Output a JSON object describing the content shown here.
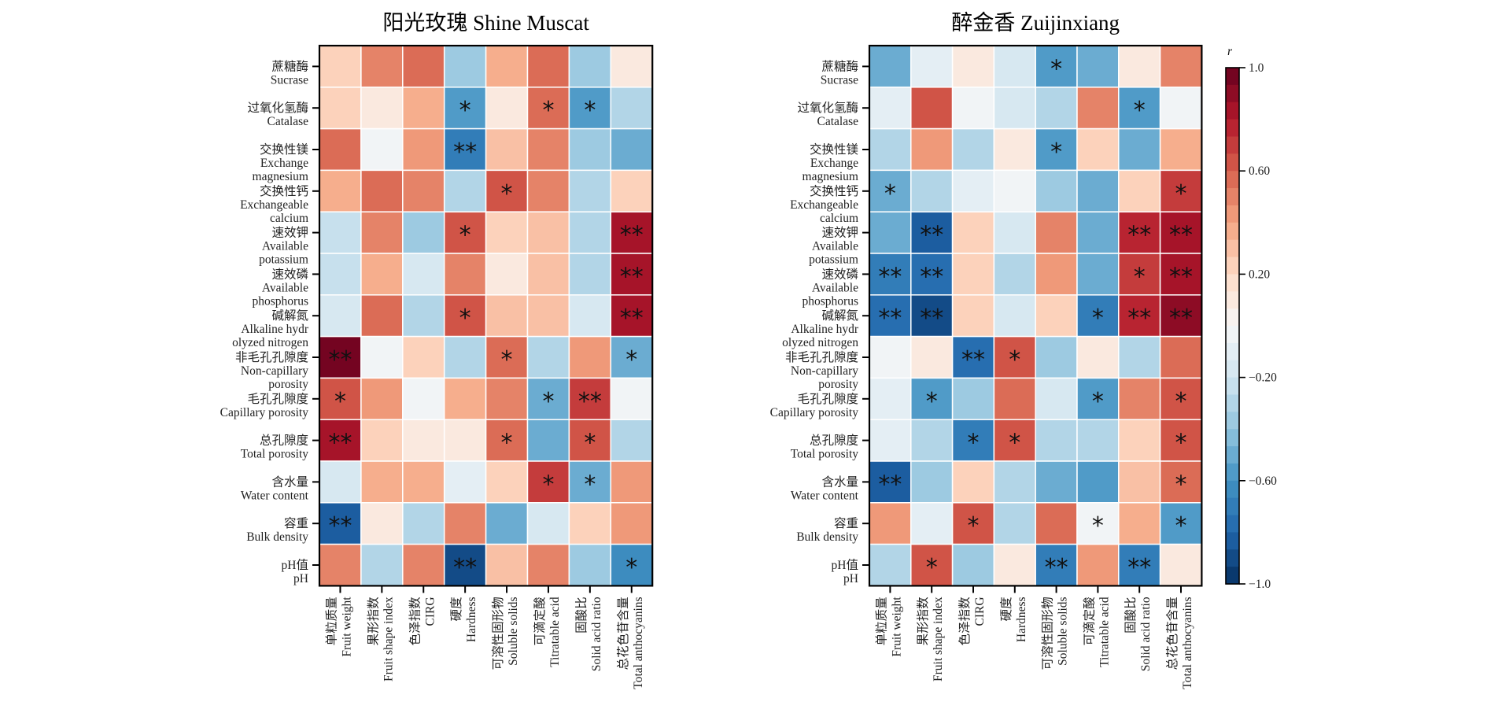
{
  "chart_data": [
    {
      "type": "heatmap",
      "title": "阳光玫瑰 Shine Muscat",
      "rows": [
        [
          "蔗糖酶",
          "Sucrase"
        ],
        [
          "过氧化氢酶",
          "Catalase"
        ],
        [
          "交换性镁",
          "Exchange",
          "magnesium"
        ],
        [
          "交换性钙",
          "Exchangeable",
          "calcium"
        ],
        [
          "速效钾",
          "Available",
          "potassium"
        ],
        [
          "速效磷",
          "Available",
          "phosphorus"
        ],
        [
          "碱解氮",
          "Alkaline hydr",
          "olyzed nitrogen"
        ],
        [
          "非毛孔孔隙度",
          "Non-capillary",
          "porosity"
        ],
        [
          "毛孔孔隙度",
          "Capillary porosity"
        ],
        [
          "总孔隙度",
          "Total porosity"
        ],
        [
          "含水量",
          "Water content"
        ],
        [
          "容重",
          "Bulk density"
        ],
        [
          "pH值",
          "pH"
        ]
      ],
      "columns": [
        [
          "单粒质量",
          "Fruit weight"
        ],
        [
          "果形指数",
          "Fruit shape index"
        ],
        [
          "色泽指数",
          "CIRG"
        ],
        [
          "硬度",
          "Hardness"
        ],
        [
          "可溶性固形物",
          "Soluble solids"
        ],
        [
          "可滴定酸",
          "Titratable acid"
        ],
        [
          "固酸比",
          "Solid acid ratio"
        ],
        [
          "总花色苷含量",
          "Total anthocyanins"
        ]
      ],
      "values": [
        [
          0.25,
          0.47,
          0.55,
          -0.4,
          0.37,
          0.55,
          -0.4,
          0.1
        ],
        [
          0.25,
          0.1,
          0.37,
          -0.6,
          0.1,
          0.57,
          -0.6,
          -0.32
        ],
        [
          0.55,
          -0.05,
          0.45,
          -0.68,
          0.33,
          0.47,
          -0.4,
          -0.47
        ],
        [
          0.37,
          0.55,
          0.48,
          -0.32,
          0.65,
          0.47,
          -0.27,
          0.2
        ],
        [
          -0.22,
          0.48,
          -0.4,
          0.65,
          0.25,
          0.33,
          -0.27,
          0.85
        ],
        [
          -0.22,
          0.37,
          -0.2,
          0.5,
          0.1,
          0.33,
          -0.32,
          0.8
        ],
        [
          -0.15,
          0.55,
          -0.27,
          0.65,
          0.33,
          0.27,
          -0.2,
          0.85
        ],
        [
          0.95,
          -0.05,
          0.2,
          -0.27,
          0.55,
          -0.32,
          0.45,
          -0.52
        ],
        [
          0.65,
          0.45,
          -0.05,
          0.37,
          0.48,
          -0.52,
          0.7,
          -0.05
        ],
        [
          0.85,
          0.25,
          0.1,
          0.1,
          0.55,
          -0.52,
          0.65,
          -0.32
        ],
        [
          -0.2,
          0.37,
          0.37,
          -0.12,
          0.25,
          0.7,
          -0.52,
          0.45
        ],
        [
          -0.82,
          0.1,
          -0.27,
          0.5,
          -0.52,
          -0.2,
          0.2,
          0.45
        ],
        [
          0.48,
          -0.32,
          0.48,
          -0.92,
          0.33,
          0.48,
          -0.4,
          -0.65
        ]
      ],
      "significance": [
        [
          "",
          "",
          "",
          "",
          "",
          "",
          "",
          ""
        ],
        [
          "",
          "",
          "",
          "*",
          "",
          "*",
          "*",
          ""
        ],
        [
          "",
          "",
          "",
          "**",
          "",
          "",
          "",
          ""
        ],
        [
          "",
          "",
          "",
          "",
          "*",
          "",
          "",
          ""
        ],
        [
          "",
          "",
          "",
          "*",
          "",
          "",
          "",
          "**"
        ],
        [
          "",
          "",
          "",
          "",
          "",
          "",
          "",
          "**"
        ],
        [
          "",
          "",
          "",
          "*",
          "",
          "",
          "",
          "**"
        ],
        [
          "**",
          "",
          "",
          "",
          "*",
          "",
          "",
          "*"
        ],
        [
          "*",
          "",
          "",
          "",
          "",
          "*",
          "**",
          ""
        ],
        [
          "**",
          "",
          "",
          "",
          "*",
          "",
          "*",
          ""
        ],
        [
          "",
          "",
          "",
          "",
          "",
          "*",
          "*",
          ""
        ],
        [
          "**",
          "",
          "",
          "",
          "",
          "",
          "",
          ""
        ],
        [
          "",
          "",
          "",
          "**",
          "",
          "",
          "",
          "*"
        ]
      ]
    },
    {
      "type": "heatmap",
      "title": "醉金香 Zuijinxiang",
      "rows": [
        [
          "蔗糖酶",
          "Sucrase"
        ],
        [
          "过氧化氢酶",
          "Catalase"
        ],
        [
          "交换性镁",
          "Exchange",
          "magnesium"
        ],
        [
          "交换性钙",
          "Exchangeable",
          "calcium"
        ],
        [
          "速效钾",
          "Available",
          "potassium"
        ],
        [
          "速效磷",
          "Available",
          "phosphorus"
        ],
        [
          "碱解氮",
          "Alkaline hydr",
          "olyzed nitrogen"
        ],
        [
          "非毛孔孔隙度",
          "Non-capillary",
          "porosity"
        ],
        [
          "毛孔孔隙度",
          "Capillary porosity"
        ],
        [
          "总孔隙度",
          "Total porosity"
        ],
        [
          "含水量",
          "Water content"
        ],
        [
          "容重",
          "Bulk density"
        ],
        [
          "pH值",
          "pH"
        ]
      ],
      "columns": [
        [
          "单粒质量",
          "Fruit weight"
        ],
        [
          "果形指数",
          "Fruit shape index"
        ],
        [
          "色泽指数",
          "CIRG"
        ],
        [
          "硬度",
          "Hardness"
        ],
        [
          "可溶性固形物",
          "Soluble solids"
        ],
        [
          "可滴定酸",
          "Titratable acid"
        ],
        [
          "固酸比",
          "Solid acid ratio"
        ],
        [
          "总花色苷含量",
          "Total anthocyanins"
        ]
      ],
      "values": [
        [
          -0.52,
          -0.12,
          0.1,
          -0.2,
          -0.6,
          -0.47,
          0.1,
          0.48
        ],
        [
          -0.12,
          0.65,
          -0.05,
          -0.2,
          -0.32,
          0.48,
          -0.6,
          -0.05
        ],
        [
          -0.32,
          0.45,
          -0.32,
          0.1,
          -0.6,
          0.25,
          -0.52,
          0.37
        ],
        [
          -0.52,
          -0.27,
          -0.12,
          -0.05,
          -0.4,
          -0.52,
          0.25,
          0.7
        ],
        [
          -0.52,
          -0.82,
          0.25,
          -0.2,
          0.48,
          -0.52,
          0.77,
          0.85
        ],
        [
          -0.68,
          -0.75,
          0.25,
          -0.32,
          0.45,
          -0.47,
          0.7,
          0.85
        ],
        [
          -0.75,
          -0.92,
          0.2,
          -0.2,
          0.25,
          -0.68,
          0.77,
          0.88
        ],
        [
          -0.05,
          0.1,
          -0.75,
          0.65,
          -0.4,
          0.1,
          -0.32,
          0.55
        ],
        [
          -0.12,
          -0.6,
          -0.4,
          0.55,
          -0.2,
          -0.6,
          0.48,
          0.65
        ],
        [
          -0.12,
          -0.32,
          -0.68,
          0.65,
          -0.32,
          -0.32,
          0.2,
          0.65
        ],
        [
          -0.82,
          -0.4,
          0.25,
          -0.32,
          -0.47,
          -0.6,
          0.33,
          0.55
        ],
        [
          0.45,
          -0.12,
          0.65,
          -0.27,
          0.55,
          -0.05,
          0.37,
          -0.6
        ],
        [
          -0.27,
          0.65,
          -0.4,
          0.1,
          -0.68,
          0.45,
          -0.72,
          0.1
        ]
      ],
      "significance": [
        [
          "",
          "",
          "",
          "",
          "*",
          "",
          "",
          ""
        ],
        [
          "",
          "",
          "",
          "",
          "",
          "",
          "*",
          ""
        ],
        [
          "",
          "",
          "",
          "",
          "*",
          "",
          "",
          ""
        ],
        [
          "*",
          "",
          "",
          "",
          "",
          "",
          "",
          "*"
        ],
        [
          "",
          "**",
          "",
          "",
          "",
          "",
          "**",
          "**"
        ],
        [
          "**",
          "**",
          "",
          "",
          "",
          "",
          "*",
          "**"
        ],
        [
          "**",
          "**",
          "",
          "",
          "",
          "*",
          "**",
          "**"
        ],
        [
          "",
          "",
          "**",
          "*",
          "",
          "",
          "",
          ""
        ],
        [
          "",
          "*",
          "",
          "",
          "",
          "*",
          "",
          "*"
        ],
        [
          "",
          "",
          "*",
          "*",
          "",
          "",
          "",
          "*"
        ],
        [
          "**",
          "",
          "",
          "",
          "",
          "",
          "",
          "*"
        ],
        [
          "",
          "",
          "*",
          "",
          "",
          "*",
          "",
          "*"
        ],
        [
          "",
          "*",
          "",
          "",
          "**",
          "",
          "**",
          ""
        ]
      ]
    }
  ],
  "colorbar": {
    "label": "r",
    "range": [
      -1.0,
      1.0
    ],
    "levels": 30,
    "ticks": [
      {
        "value": 1.0,
        "label": "1.0"
      },
      {
        "value": 0.6,
        "label": "0.60"
      },
      {
        "value": 0.2,
        "label": "0.20"
      },
      {
        "value": -0.2,
        "label": "−0.20"
      },
      {
        "value": -0.6,
        "label": "−0.60"
      },
      {
        "value": -1.0,
        "label": "−1.0"
      }
    ],
    "colormap_stops": [
      "#053061",
      "#2166ac",
      "#4393c3",
      "#92c5de",
      "#d1e5f0",
      "#f7f7f7",
      "#fddbc7",
      "#f4a582",
      "#d6604d",
      "#b2182b",
      "#67001f"
    ]
  }
}
